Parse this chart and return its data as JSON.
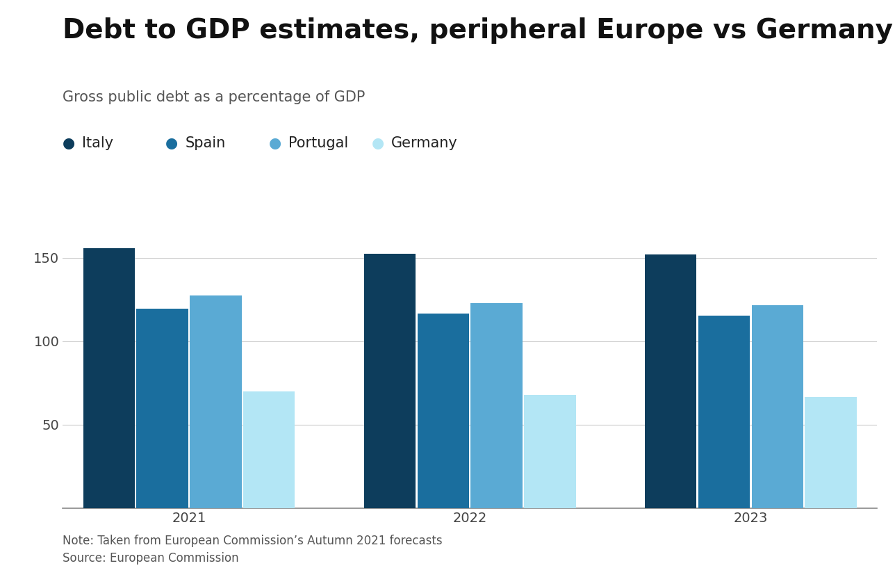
{
  "title": "Debt to GDP estimates, peripheral Europe vs Germany",
  "subtitle": "Gross public debt as a percentage of GDP",
  "note": "Note: Taken from European Commission’s Autumn 2021 forecasts",
  "source": "Source: European Commission",
  "years": [
    "2021",
    "2022",
    "2023"
  ],
  "series": [
    {
      "label": "Italy",
      "color": "#0d3d5c",
      "values": [
        155.8,
        152.6,
        151.8
      ]
    },
    {
      "label": "Spain",
      "color": "#1a6e9e",
      "values": [
        119.5,
        116.4,
        115.2
      ]
    },
    {
      "label": "Portugal",
      "color": "#5aaad4",
      "values": [
        127.4,
        122.8,
        121.5
      ]
    },
    {
      "label": "Germany",
      "color": "#b3e6f5",
      "values": [
        70.0,
        68.0,
        66.5
      ]
    }
  ],
  "ylim": [
    0,
    175
  ],
  "yticks": [
    50,
    100,
    150
  ],
  "background_color": "#ffffff",
  "title_fontsize": 28,
  "subtitle_fontsize": 15,
  "legend_fontsize": 15,
  "tick_fontsize": 14,
  "note_fontsize": 12,
  "bar_width": 0.19
}
